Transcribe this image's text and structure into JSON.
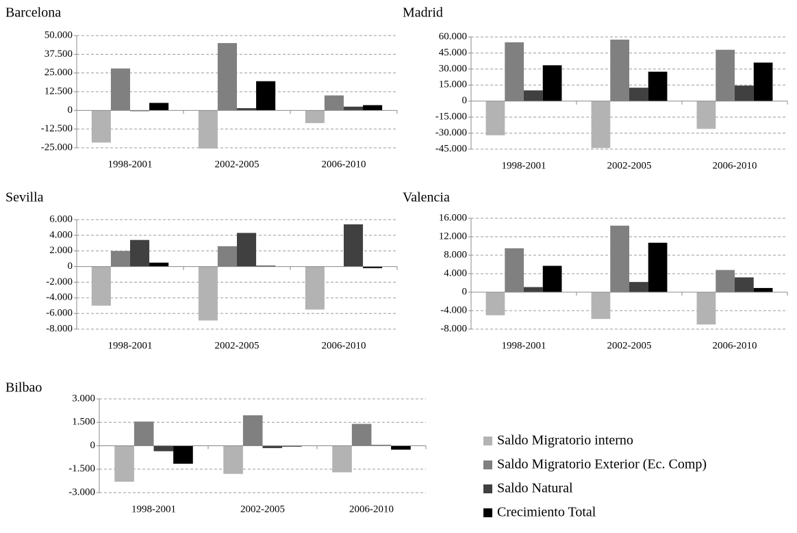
{
  "chart_data": [
    {
      "type": "bar",
      "title": "Barcelona",
      "categories": [
        "1998-2001",
        "2002-2005",
        "2006-2010"
      ],
      "series": [
        {
          "name": "Saldo Migratorio interno",
          "color": "#b3b3b3",
          "values": [
            -21500,
            -25500,
            -8500
          ]
        },
        {
          "name": "Saldo Migratorio Exterior (Ec. Comp)",
          "color": "#808080",
          "values": [
            28000,
            45000,
            10000
          ]
        },
        {
          "name": "Saldo Natural",
          "color": "#404040",
          "values": [
            -500,
            1500,
            2500
          ]
        },
        {
          "name": "Crecimiento Total",
          "color": "#000000",
          "values": [
            5000,
            19500,
            3500
          ]
        }
      ],
      "ylim": [
        -25000,
        50000
      ],
      "yticks": [
        {
          "value": 50000,
          "label": "50.000"
        },
        {
          "value": 37500,
          "label": "37.500"
        },
        {
          "value": 25000,
          "label": "25.000"
        },
        {
          "value": 12500,
          "label": "12.500"
        },
        0,
        {
          "value": -12500,
          "label": "-12.500"
        },
        {
          "value": -25000,
          "label": "-25.000"
        }
      ],
      "grid": true
    },
    {
      "type": "bar",
      "title": "Madrid",
      "categories": [
        "1998-2001",
        "2002-2005",
        "2006-2010"
      ],
      "series": [
        {
          "name": "Saldo Migratorio interno",
          "color": "#b3b3b3",
          "values": [
            -32000,
            -44000,
            -26000
          ]
        },
        {
          "name": "Saldo Migratorio Exterior (Ec. Comp)",
          "color": "#808080",
          "values": [
            55000,
            57500,
            48000
          ]
        },
        {
          "name": "Saldo Natural",
          "color": "#404040",
          "values": [
            10000,
            12500,
            14500
          ]
        },
        {
          "name": "Crecimiento Total",
          "color": "#000000",
          "values": [
            33500,
            27500,
            36000
          ]
        }
      ],
      "ylim": [
        -45000,
        60000
      ],
      "yticks": [
        {
          "value": 60000,
          "label": "60.000"
        },
        {
          "value": 45000,
          "label": "45.000"
        },
        {
          "value": 30000,
          "label": "30.000"
        },
        {
          "value": 15000,
          "label": "15.000"
        },
        0,
        {
          "value": -15000,
          "label": "-15.000"
        },
        {
          "value": -30000,
          "label": "-30.000"
        },
        {
          "value": -45000,
          "label": "-45.000"
        }
      ],
      "grid": true
    },
    {
      "type": "bar",
      "title": "Sevilla",
      "categories": [
        "1998-2001",
        "2002-2005",
        "2006-2010"
      ],
      "series": [
        {
          "name": "Saldo Migratorio interno",
          "color": "#b3b3b3",
          "values": [
            -5000,
            -6900,
            -5500
          ]
        },
        {
          "name": "Saldo Migratorio Exterior (Ec. Comp)",
          "color": "#808080",
          "values": [
            2000,
            2600,
            0
          ]
        },
        {
          "name": "Saldo Natural",
          "color": "#404040",
          "values": [
            3400,
            4300,
            5400
          ]
        },
        {
          "name": "Crecimiento Total",
          "color": "#000000",
          "values": [
            500,
            100,
            -200
          ]
        }
      ],
      "ylim": [
        -8000,
        6000
      ],
      "yticks": [
        {
          "value": 6000,
          "label": "6.000"
        },
        {
          "value": 4000,
          "label": "4.000"
        },
        {
          "value": 2000,
          "label": "2.000"
        },
        0,
        {
          "value": -2000,
          "label": "-2.000"
        },
        {
          "value": -4000,
          "label": "-4.000"
        },
        {
          "value": -6000,
          "label": "-6.000"
        },
        {
          "value": -8000,
          "label": "-8.000"
        }
      ],
      "grid": true
    },
    {
      "type": "bar",
      "title": "Valencia",
      "categories": [
        "1998-2001",
        "2002-2005",
        "2006-2010"
      ],
      "series": [
        {
          "name": "Saldo Migratorio interno",
          "color": "#b3b3b3",
          "values": [
            -5000,
            -5800,
            -7000
          ]
        },
        {
          "name": "Saldo Migratorio Exterior (Ec. Comp)",
          "color": "#808080",
          "values": [
            9500,
            14400,
            4800
          ]
        },
        {
          "name": "Saldo Natural",
          "color": "#404040",
          "values": [
            1100,
            2200,
            3200
          ]
        },
        {
          "name": "Crecimiento Total",
          "color": "#000000",
          "values": [
            5700,
            10700,
            900
          ]
        }
      ],
      "ylim": [
        -8000,
        16000
      ],
      "yticks": [
        {
          "value": 16000,
          "label": "16.000"
        },
        {
          "value": 12000,
          "label": "12.000"
        },
        {
          "value": 8000,
          "label": "8.000"
        },
        {
          "value": 4000,
          "label": "4.000"
        },
        0,
        {
          "value": -4000,
          "label": "-4.000"
        },
        {
          "value": -8000,
          "label": "-8.000"
        }
      ],
      "grid": true
    },
    {
      "type": "bar",
      "title": "Bilbao",
      "categories": [
        "1998-2001",
        "2002-2005",
        "2006-2010"
      ],
      "series": [
        {
          "name": "Saldo Migratorio interno",
          "color": "#b3b3b3",
          "values": [
            -2300,
            -1800,
            -1700
          ]
        },
        {
          "name": "Saldo Migratorio Exterior (Ec. Comp)",
          "color": "#808080",
          "values": [
            1550,
            1950,
            1400
          ]
        },
        {
          "name": "Saldo Natural",
          "color": "#404040",
          "values": [
            -350,
            -150,
            50
          ]
        },
        {
          "name": "Crecimiento Total",
          "color": "#000000",
          "values": [
            -1150,
            -50,
            -250
          ]
        }
      ],
      "ylim": [
        -3000,
        3000
      ],
      "yticks": [
        {
          "value": 3000,
          "label": "3.000"
        },
        {
          "value": 1500,
          "label": "1.500"
        },
        0,
        {
          "value": -1500,
          "label": "-1.500"
        },
        {
          "value": -3000,
          "label": "-3.000"
        }
      ],
      "grid": true,
      "legend": "right"
    }
  ]
}
